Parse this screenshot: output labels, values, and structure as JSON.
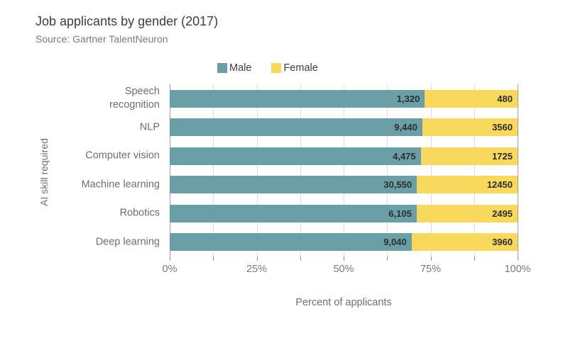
{
  "header": {
    "title": "Job applicants by gender (2017)",
    "subtitle": "Source: Gartner TalentNeuron"
  },
  "legend": [
    {
      "label": "Male",
      "color": "#6b9fa8"
    },
    {
      "label": "Female",
      "color": "#f8d95c"
    }
  ],
  "chart_data": {
    "type": "bar",
    "orientation": "horizontal",
    "stacked": true,
    "stack_mode": "percent_of_row_total",
    "title": "Job applicants by gender (2017)",
    "subtitle": "Source: Gartner TalentNeuron",
    "categories": [
      "Speech\nrecognition",
      "NLP",
      "Computer vision",
      "Machine learning",
      "Robotics",
      "Deep learning"
    ],
    "series": [
      {
        "name": "Male",
        "color": "#6b9fa8",
        "values": [
          1320,
          9440,
          4475,
          30550,
          6105,
          9040
        ],
        "labels": [
          "1,320",
          "9,440",
          "4,475",
          "30,550",
          "6,105",
          "9,040"
        ]
      },
      {
        "name": "Female",
        "color": "#f8d95c",
        "values": [
          480,
          3560,
          1725,
          12450,
          2495,
          3960
        ],
        "labels": [
          "480",
          "3560",
          "1725",
          "12450",
          "2495",
          "3960"
        ]
      }
    ],
    "xlabel": "Percent of applicants",
    "ylabel": "AI skill required",
    "xlim": [
      0,
      100
    ],
    "x_tick_labels": [
      "0%",
      "25%",
      "50%",
      "75%",
      "100%"
    ],
    "x_tick_label_positions": [
      0,
      25,
      50,
      75,
      100
    ],
    "minor_tick_step_percent": 12.5,
    "grid": "vertical",
    "legend_position": "top-center"
  },
  "colors": {
    "grid": "#dcdcdc",
    "axis_edge": "#9e9e9e",
    "value_label": "#2e2e2e",
    "text_muted": "#6f6f6f"
  }
}
